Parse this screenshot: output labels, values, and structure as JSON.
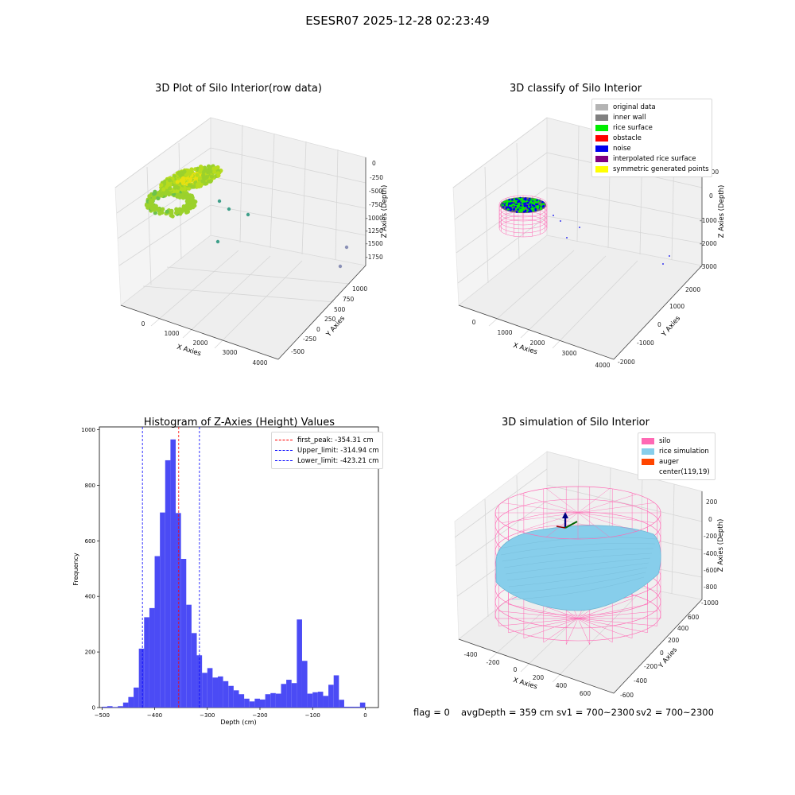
{
  "header": {
    "title": "ESESR07 2025-12-28 02:23:49"
  },
  "chart_data": [
    {
      "type": "scatter",
      "title": "3D Plot of Silo Interior(row data)",
      "xlabel": "X Axies",
      "ylabel": "Y Axies",
      "zlabel": "Z Axies (Depth)",
      "x_ticks": [
        "0",
        "1000",
        "2000",
        "3000",
        "4000"
      ],
      "y_ticks": [
        "-500",
        "-250",
        "0",
        "250",
        "500",
        "750",
        "1000"
      ],
      "z_ticks": [
        "0",
        "-250",
        "-500",
        "-750",
        "-1000",
        "-1250",
        "-1500",
        "-1750"
      ],
      "colors": {
        "cloud": "#9bd12c",
        "cloud_top": "#e6e010",
        "outlier": "#3f9f8a",
        "outlier_far": "#8a90b6"
      }
    },
    {
      "type": "scatter",
      "title": "3D classify of Silo Interior",
      "xlabel": "X Axies",
      "ylabel": "Y Axies",
      "zlabel": "Z Axies (Depth)",
      "x_ticks": [
        "0",
        "1000",
        "2000",
        "3000",
        "4000"
      ],
      "y_ticks": [
        "-2000",
        "-1000",
        "0",
        "1000",
        "2000"
      ],
      "z_ticks": [
        "1000",
        "0",
        "-1000",
        "-2000",
        "-3000"
      ],
      "legend": [
        {
          "label": "original data",
          "color": "#b3b3b3"
        },
        {
          "label": "inner wall",
          "color": "#808080"
        },
        {
          "label": "rice surface",
          "color": "#00ee00"
        },
        {
          "label": "obstacle",
          "color": "#ff0000"
        },
        {
          "label": "noise",
          "color": "#0000ee"
        },
        {
          "label": "interpolated rice surface",
          "color": "#800080"
        },
        {
          "label": "symmetric generated points",
          "color": "#ffff00"
        }
      ]
    },
    {
      "type": "bar",
      "title": "Histogram of Z-Axies (Height) Values",
      "xlabel": "Depth (cm)",
      "ylabel": "Frequency",
      "xlim": [
        -505,
        25
      ],
      "ylim": [
        0,
        1010
      ],
      "x_ticks": [
        -500,
        -400,
        -300,
        -200,
        -100,
        0
      ],
      "y_ticks": [
        0,
        200,
        400,
        600,
        800,
        1000
      ],
      "bin_width": 10,
      "bins": [
        [
          -500,
          3
        ],
        [
          -490,
          5
        ],
        [
          -480,
          2
        ],
        [
          -470,
          5
        ],
        [
          -460,
          18
        ],
        [
          -450,
          38
        ],
        [
          -440,
          72
        ],
        [
          -430,
          212
        ],
        [
          -420,
          325
        ],
        [
          -410,
          358
        ],
        [
          -400,
          545
        ],
        [
          -390,
          702
        ],
        [
          -380,
          890
        ],
        [
          -370,
          965
        ],
        [
          -360,
          700
        ],
        [
          -350,
          535
        ],
        [
          -340,
          370
        ],
        [
          -330,
          268
        ],
        [
          -320,
          188
        ],
        [
          -310,
          125
        ],
        [
          -300,
          142
        ],
        [
          -290,
          108
        ],
        [
          -280,
          112
        ],
        [
          -270,
          95
        ],
        [
          -260,
          78
        ],
        [
          -250,
          62
        ],
        [
          -240,
          48
        ],
        [
          -230,
          32
        ],
        [
          -220,
          22
        ],
        [
          -210,
          32
        ],
        [
          -200,
          29
        ],
        [
          -190,
          48
        ],
        [
          -180,
          52
        ],
        [
          -170,
          50
        ],
        [
          -160,
          85
        ],
        [
          -150,
          100
        ],
        [
          -140,
          88
        ],
        [
          -130,
          317
        ],
        [
          -120,
          168
        ],
        [
          -110,
          50
        ],
        [
          -100,
          55
        ],
        [
          -90,
          57
        ],
        [
          -80,
          42
        ],
        [
          -70,
          82
        ],
        [
          -60,
          116
        ],
        [
          -50,
          28
        ],
        [
          -40,
          3
        ],
        [
          -30,
          3
        ],
        [
          -20,
          3
        ],
        [
          -10,
          18
        ]
      ],
      "bar_color": "#4b4bf5",
      "vlines": [
        {
          "label": "first_peak: -354.31 cm",
          "x": -354.31,
          "color": "#ff0000"
        },
        {
          "label": "Upper_limit: -314.94 cm",
          "x": -314.94,
          "color": "#0000ff"
        },
        {
          "label": "Lower_limit: -423.21 cm",
          "x": -423.21,
          "color": "#0000ff"
        }
      ]
    },
    {
      "type": "scatter",
      "title": "3D simulation of Silo Interior",
      "xlabel": "X Axies",
      "ylabel": "Y Axies",
      "zlabel": "Z Axies (Depth)",
      "x_ticks": [
        "-400",
        "-200",
        "0",
        "200",
        "400",
        "600"
      ],
      "y_ticks": [
        "-600",
        "-400",
        "-200",
        "0",
        "200",
        "400",
        "600"
      ],
      "z_ticks": [
        "200",
        "0",
        "-200",
        "-400",
        "-600",
        "-800",
        "-1000"
      ],
      "legend": [
        {
          "label": "silo",
          "color": "#ff69b4"
        },
        {
          "label": "rice simulation",
          "color": "#87ceeb"
        },
        {
          "label": "auger",
          "color": "#ff4500"
        },
        {
          "label": "center(119,19)",
          "color": "none"
        }
      ]
    }
  ],
  "footer": {
    "flag": "flag = 0",
    "avg": "avgDepth = 359 cm",
    "sv1": "sv1 = 700~2300",
    "sv2": "sv2 = 700~2300"
  }
}
